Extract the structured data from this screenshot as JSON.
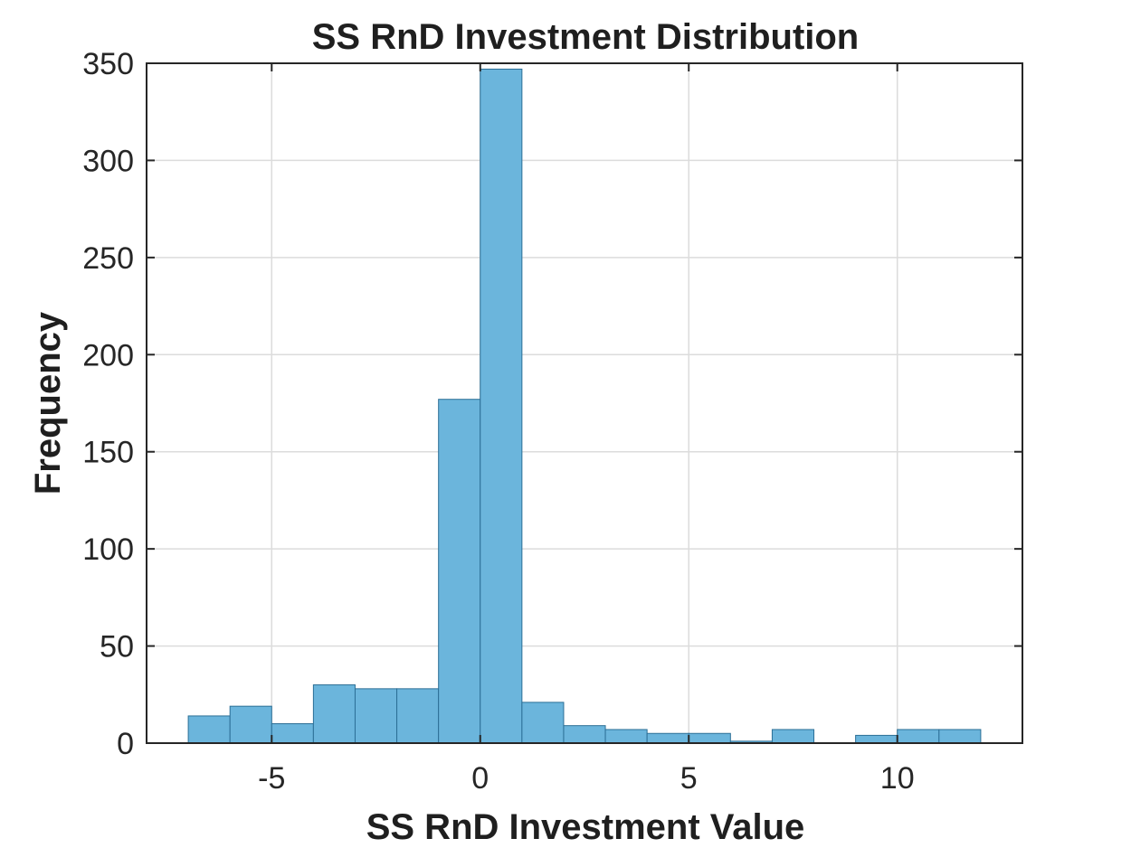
{
  "chart_data": {
    "type": "bar",
    "title": "SS RnD Investment Distribution",
    "xlabel": "SS RnD Investment Value",
    "ylabel": "Frequency",
    "xlim": [
      -8,
      13
    ],
    "ylim": [
      0,
      350
    ],
    "xticks": [
      -5,
      0,
      5,
      10
    ],
    "yticks": [
      0,
      50,
      100,
      150,
      200,
      250,
      300,
      350
    ],
    "grid": true,
    "bin_width": 1,
    "bin_edges": [
      -7,
      -6,
      -5,
      -4,
      -3,
      -2,
      -1,
      0,
      1,
      2,
      3,
      4,
      5,
      6,
      7,
      8,
      9,
      10,
      11,
      12
    ],
    "values": [
      14,
      19,
      10,
      30,
      28,
      28,
      177,
      347,
      21,
      9,
      7,
      5,
      5,
      1,
      7,
      0,
      4,
      7,
      7
    ],
    "colors": {
      "bar_fill": "#6bb5dc",
      "bar_edge": "#2c6f96",
      "grid": "#dcdcdc",
      "axes": "#262626"
    }
  }
}
